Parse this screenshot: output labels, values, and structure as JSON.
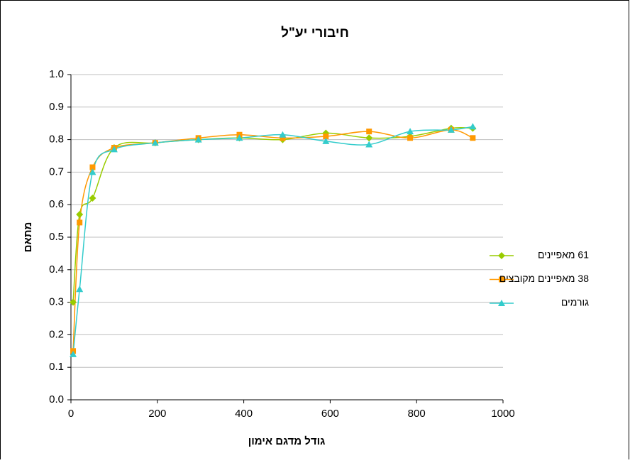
{
  "chart_data": {
    "type": "line",
    "title": "חיבורי יע\"ל",
    "xlabel": "גודל מדגם אימון",
    "ylabel": "מתאם",
    "x": [
      5,
      20,
      50,
      100,
      195,
      295,
      390,
      490,
      590,
      690,
      785,
      880,
      930
    ],
    "series": [
      {
        "name": "61 מאפיינים",
        "color": "#99cc00",
        "marker": "diamond",
        "values": [
          0.3,
          0.57,
          0.62,
          0.775,
          0.79,
          0.8,
          0.805,
          0.8,
          0.82,
          0.805,
          0.81,
          0.835,
          0.835
        ]
      },
      {
        "name": "38 מאפיינים מקובצים",
        "color": "#ff9900",
        "marker": "square",
        "values": [
          0.15,
          0.545,
          0.715,
          0.775,
          0.79,
          0.805,
          0.815,
          0.805,
          0.81,
          0.825,
          0.805,
          0.83,
          0.805
        ]
      },
      {
        "name": "גורמים",
        "color": "#33cccc",
        "marker": "triangle",
        "values": [
          0.14,
          0.34,
          0.7,
          0.77,
          0.79,
          0.8,
          0.805,
          0.815,
          0.795,
          0.785,
          0.825,
          0.83,
          0.84
        ]
      }
    ],
    "xlim": [
      0,
      1000
    ],
    "xticks": [
      0,
      200,
      400,
      600,
      800,
      1000
    ],
    "ylim": [
      0,
      1
    ],
    "yticks": [
      {
        "value": 0,
        "label": "0.0"
      },
      0.1,
      0.2,
      0.3,
      0.4,
      0.5,
      0.6,
      0.7,
      0.8,
      0.9,
      {
        "value": 1,
        "label": "1.0"
      }
    ],
    "grid": true,
    "legend": "right"
  }
}
